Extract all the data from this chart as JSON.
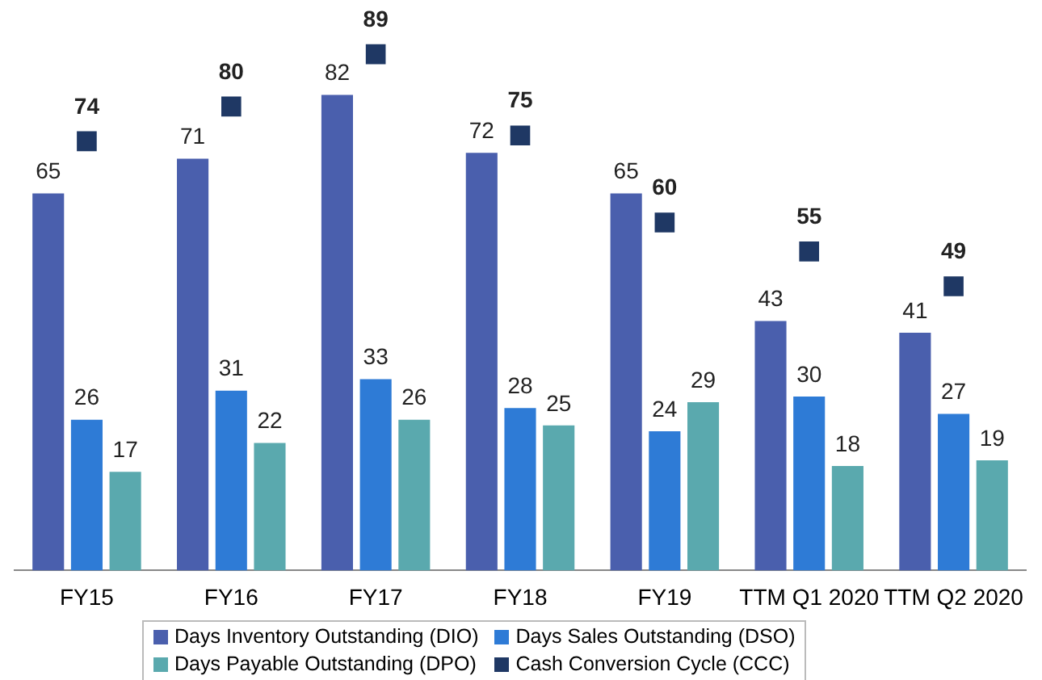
{
  "chart_data": {
    "type": "bar",
    "categories": [
      "FY15",
      "FY16",
      "FY17",
      "FY18",
      "FY19",
      "TTM Q1 2020",
      "TTM Q2 2020"
    ],
    "series": [
      {
        "name": "Days Inventory Outstanding (DIO)",
        "color": "#4a5fad",
        "values": [
          65,
          71,
          82,
          72,
          65,
          43,
          41
        ]
      },
      {
        "name": "Days Sales Outstanding (DSO)",
        "color": "#2e7bd6",
        "values": [
          26,
          31,
          33,
          28,
          24,
          30,
          27
        ]
      },
      {
        "name": "Days Payable Outstanding (DPO)",
        "color": "#5aa9ae",
        "values": [
          17,
          22,
          26,
          25,
          29,
          18,
          19
        ]
      },
      {
        "name": "Cash Conversion Cycle (CCC)",
        "type": "scatter",
        "marker": "square",
        "color": "#1f3864",
        "x": [
          "FY15",
          "FY16",
          "FY17",
          "FY18",
          "FY19",
          "TTM Q1 2020",
          "TTM Q2 2020"
        ],
        "values": [
          74,
          80,
          89,
          75,
          60,
          55,
          49
        ]
      }
    ],
    "data_labels": true,
    "grid": false,
    "legend": "bottom",
    "tick_labels": "x"
  }
}
